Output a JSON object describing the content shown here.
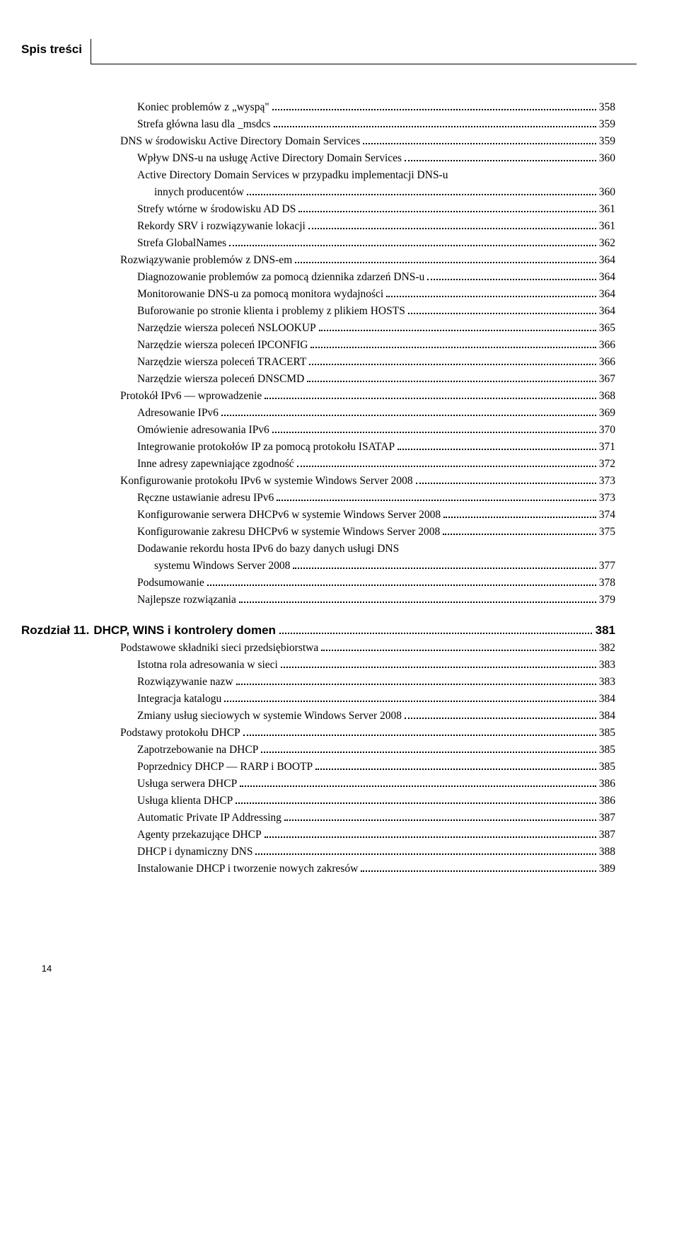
{
  "header": {
    "title": "Spis treści"
  },
  "footer": {
    "page": "14"
  },
  "entries": [
    {
      "type": "line",
      "indent": 2,
      "text": "Koniec problemów z „wyspą\"",
      "page": "358"
    },
    {
      "type": "line",
      "indent": 2,
      "text": "Strefa główna lasu dla _msdcs",
      "page": "359"
    },
    {
      "type": "line",
      "indent": 1,
      "text": "DNS w środowisku Active Directory Domain Services",
      "page": "359"
    },
    {
      "type": "line",
      "indent": 2,
      "text": "Wpływ DNS-u na usługę Active Directory Domain Services",
      "page": "360"
    },
    {
      "type": "line-wrap",
      "indent": 2,
      "text1": "Active Directory Domain Services w przypadku implementacji DNS-u",
      "text2": "innych producentów",
      "page": "360"
    },
    {
      "type": "line",
      "indent": 2,
      "text": "Strefy wtórne w środowisku AD DS",
      "page": "361"
    },
    {
      "type": "line",
      "indent": 2,
      "text": "Rekordy SRV i rozwiązywanie lokacji",
      "page": "361"
    },
    {
      "type": "line",
      "indent": 2,
      "text": "Strefa GlobalNames",
      "page": "362"
    },
    {
      "type": "line",
      "indent": 1,
      "text": "Rozwiązywanie problemów z DNS-em",
      "page": "364"
    },
    {
      "type": "line",
      "indent": 2,
      "text": "Diagnozowanie problemów za pomocą dziennika zdarzeń DNS-u",
      "page": "364"
    },
    {
      "type": "line",
      "indent": 2,
      "text": "Monitorowanie DNS-u za pomocą monitora wydajności",
      "page": "364"
    },
    {
      "type": "line",
      "indent": 2,
      "text": "Buforowanie po stronie klienta i problemy z plikiem HOSTS",
      "page": "364"
    },
    {
      "type": "line",
      "indent": 2,
      "text": "Narzędzie wiersza poleceń NSLOOKUP",
      "page": "365"
    },
    {
      "type": "line",
      "indent": 2,
      "text": "Narzędzie wiersza poleceń IPCONFIG",
      "page": "366"
    },
    {
      "type": "line",
      "indent": 2,
      "text": "Narzędzie wiersza poleceń TRACERT",
      "page": "366"
    },
    {
      "type": "line",
      "indent": 2,
      "text": "Narzędzie wiersza poleceń DNSCMD",
      "page": "367"
    },
    {
      "type": "line",
      "indent": 1,
      "text": "Protokół IPv6 — wprowadzenie",
      "page": "368"
    },
    {
      "type": "line",
      "indent": 2,
      "text": "Adresowanie IPv6",
      "page": "369"
    },
    {
      "type": "line",
      "indent": 2,
      "text": "Omówienie adresowania IPv6",
      "page": "370"
    },
    {
      "type": "line",
      "indent": 2,
      "text": "Integrowanie protokołów IP za pomocą protokołu ISATAP",
      "page": "371"
    },
    {
      "type": "line",
      "indent": 2,
      "text": "Inne adresy zapewniające zgodność",
      "page": "372"
    },
    {
      "type": "line",
      "indent": 1,
      "text": "Konfigurowanie protokołu IPv6 w systemie Windows Server 2008",
      "page": "373"
    },
    {
      "type": "line",
      "indent": 2,
      "text": "Ręczne ustawianie adresu IPv6",
      "page": "373"
    },
    {
      "type": "line",
      "indent": 2,
      "text": "Konfigurowanie serwera DHCPv6 w systemie Windows Server 2008",
      "page": "374"
    },
    {
      "type": "line",
      "indent": 2,
      "text": "Konfigurowanie zakresu DHCPv6 w systemie Windows Server 2008",
      "page": "375"
    },
    {
      "type": "line-wrap",
      "indent": 2,
      "text1": "Dodawanie rekordu hosta IPv6 do bazy danych usługi DNS",
      "text2": "systemu Windows Server 2008",
      "page": "377"
    },
    {
      "type": "line",
      "indent": 2,
      "text": "Podsumowanie",
      "page": "378"
    },
    {
      "type": "line",
      "indent": 2,
      "text": "Najlepsze rozwiązania",
      "page": "379"
    },
    {
      "type": "chapter",
      "prefix": "Rozdział 11.",
      "title": "DHCP, WINS i kontrolery domen",
      "page": "381"
    },
    {
      "type": "line",
      "indent": 1,
      "text": "Podstawowe składniki sieci przedsiębiorstwa",
      "page": "382"
    },
    {
      "type": "line",
      "indent": 2,
      "text": "Istotna rola adresowania w sieci",
      "page": "383"
    },
    {
      "type": "line",
      "indent": 2,
      "text": "Rozwiązywanie nazw",
      "page": "383"
    },
    {
      "type": "line",
      "indent": 2,
      "text": "Integracja katalogu",
      "page": "384"
    },
    {
      "type": "line",
      "indent": 2,
      "text": "Zmiany usług sieciowych w systemie Windows Server 2008",
      "page": "384"
    },
    {
      "type": "line",
      "indent": 1,
      "text": "Podstawy protokołu DHCP",
      "page": "385"
    },
    {
      "type": "line",
      "indent": 2,
      "text": "Zapotrzebowanie na DHCP",
      "page": "385"
    },
    {
      "type": "line",
      "indent": 2,
      "text": "Poprzednicy DHCP — RARP i BOOTP",
      "page": "385"
    },
    {
      "type": "line",
      "indent": 2,
      "text": "Usługa serwera DHCP",
      "page": "386"
    },
    {
      "type": "line",
      "indent": 2,
      "text": "Usługa klienta DHCP",
      "page": "386"
    },
    {
      "type": "line",
      "indent": 2,
      "text": "Automatic Private IP Addressing",
      "page": "387"
    },
    {
      "type": "line",
      "indent": 2,
      "text": "Agenty przekazujące DHCP",
      "page": "387"
    },
    {
      "type": "line",
      "indent": 2,
      "text": "DHCP i dynamiczny DNS",
      "page": "388"
    },
    {
      "type": "line",
      "indent": 2,
      "text": "Instalowanie DHCP i tworzenie nowych zakresów",
      "page": "389"
    }
  ]
}
